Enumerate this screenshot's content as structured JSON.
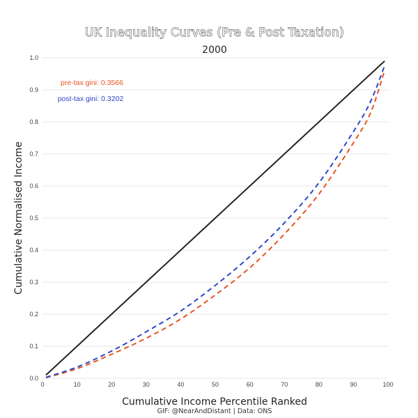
{
  "chart_data": {
    "type": "line",
    "title": "UK Inequality Curves (Pre & Post Taxation)",
    "subtitle": "2000",
    "xlabel": "Cumulative Income Percentile Ranked",
    "ylabel": "Cumulative Normalised Income",
    "credit": "GIF: @NearAndDistant | Data: ONS",
    "xlim": [
      0,
      100
    ],
    "ylim": [
      0,
      1.0
    ],
    "x_ticks": [
      "0",
      "10",
      "20",
      "30",
      "40",
      "50",
      "60",
      "70",
      "80",
      "90",
      "100"
    ],
    "y_ticks": [
      "0.0",
      "0.1",
      "0.2",
      "0.3",
      "0.4",
      "0.5",
      "0.6",
      "0.7",
      "0.8",
      "0.9",
      "1.0"
    ],
    "grid": "horizontal",
    "annotations": [
      {
        "text": "pre-tax gini: 0.3566",
        "color": "#e8531f"
      },
      {
        "text": "post-tax gini: 0.3202",
        "color": "#2e45c4"
      }
    ],
    "series": [
      {
        "style": "solid",
        "color": "#222222",
        "x": [
          1,
          99
        ],
        "y": [
          0.01,
          0.99
        ]
      },
      {
        "style": "dashed",
        "color": "#e8531f",
        "x": [
          1,
          10,
          20,
          30,
          40,
          50,
          60,
          70,
          80,
          90,
          95,
          99
        ],
        "y": [
          0.002,
          0.03,
          0.075,
          0.125,
          0.185,
          0.26,
          0.345,
          0.45,
          0.575,
          0.735,
          0.83,
          0.96
        ]
      },
      {
        "style": "dashed",
        "color": "#2e45c4",
        "x": [
          1,
          10,
          20,
          30,
          40,
          50,
          60,
          70,
          80,
          90,
          95,
          99
        ],
        "y": [
          0.003,
          0.035,
          0.085,
          0.145,
          0.21,
          0.29,
          0.38,
          0.485,
          0.61,
          0.77,
          0.865,
          0.975
        ]
      }
    ]
  }
}
